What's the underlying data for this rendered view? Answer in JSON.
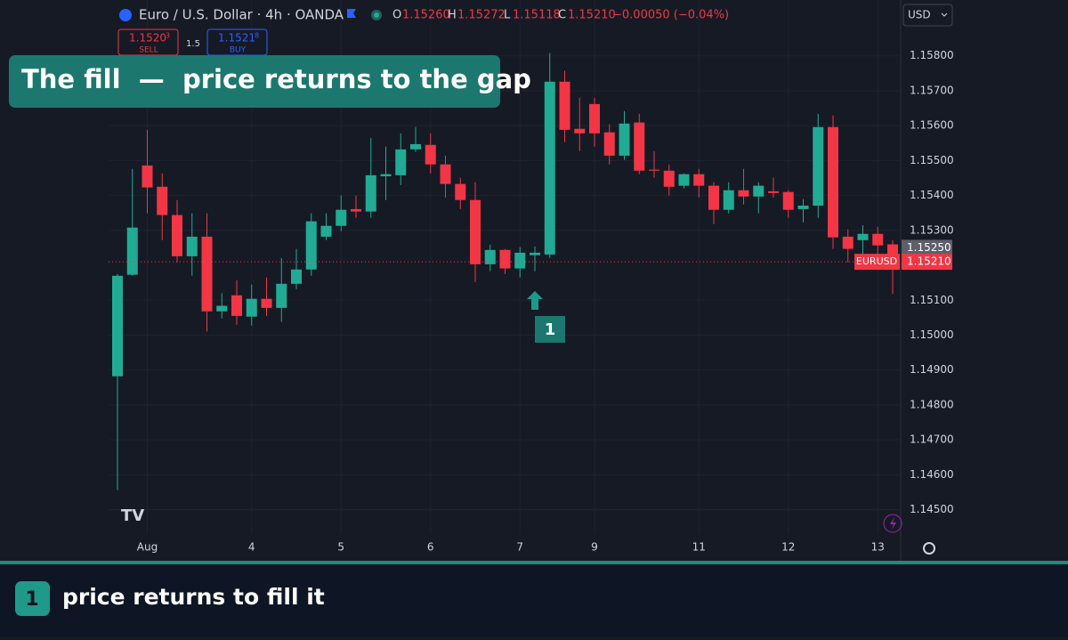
{
  "header": {
    "symbol": "Euro / U.S. Dollar · 4h · OANDA",
    "o_label": "O",
    "o": "1.15260",
    "h_label": "H",
    "h": "1.15272",
    "l_label": "L",
    "l": "1.15118",
    "c_label": "C",
    "c": "1.15210",
    "change": "−0.00050 (−0.04%)",
    "currency": "USD",
    "sell_price": "1.1520",
    "sell_sup": "3",
    "sell": "SELL",
    "spread": "1.5",
    "buy_price": "1.1521",
    "buy_sup": "8",
    "buy": "BUY"
  },
  "overlay": {
    "title": "The fill  —  price returns to the gap"
  },
  "chart_data": {
    "type": "candlestick",
    "up_color": "#22ab94",
    "down_color": "#f23645",
    "annotation": "1",
    "open": [
      1.14882,
      1.15173,
      1.15486,
      1.15425,
      1.15344,
      1.15226,
      1.15282,
      1.15068,
      1.15114,
      1.15053,
      1.15104,
      1.15078,
      1.15147,
      1.15188,
      1.15282,
      1.15313,
      1.15361,
      1.15354,
      1.15455,
      1.15458,
      1.15532,
      1.15545,
      1.15489,
      1.15433,
      1.15387,
      1.15203,
      1.15244,
      1.15191,
      1.15229,
      1.15231,
      1.15726,
      1.15591,
      1.15662,
      1.15581,
      1.15514,
      1.15609,
      1.15474,
      1.15471,
      1.15428,
      1.15461,
      1.15428,
      1.15359,
      1.15415,
      1.15397,
      1.15412,
      1.1541,
      1.15361,
      1.15371,
      1.15596,
      1.15282,
      1.15272,
      1.1529,
      1.1526
    ],
    "high": [
      1.15175,
      1.15476,
      1.15588,
      1.15463,
      1.15387,
      1.15349,
      1.15349,
      1.1512,
      1.15157,
      1.15145,
      1.15165,
      1.15221,
      1.15247,
      1.15349,
      1.15349,
      1.154,
      1.154,
      1.15565,
      1.1554,
      1.15578,
      1.15596,
      1.15578,
      1.15514,
      1.15451,
      1.15438,
      1.15259,
      1.15247,
      1.15252,
      1.15254,
      1.15808,
      1.15757,
      1.1568,
      1.1568,
      1.15604,
      1.15642,
      1.15634,
      1.15527,
      1.15489,
      1.15463,
      1.15476,
      1.15438,
      1.15438,
      1.15476,
      1.15438,
      1.15451,
      1.15415,
      1.15389,
      1.15634,
      1.15629,
      1.15303,
      1.15315,
      1.1531,
      1.15272
    ],
    "low": [
      1.14556,
      1.1517,
      1.15349,
      1.15272,
      1.15208,
      1.1517,
      1.1501,
      1.15048,
      1.1503,
      1.15027,
      1.15055,
      1.15038,
      1.15132,
      1.1517,
      1.15272,
      1.15298,
      1.15336,
      1.15336,
      1.15387,
      1.1543,
      1.15525,
      1.15463,
      1.15394,
      1.15361,
      1.15152,
      1.15183,
      1.15175,
      1.15165,
      1.15183,
      1.15221,
      1.15553,
      1.15527,
      1.1554,
      1.15489,
      1.15502,
      1.15461,
      1.15451,
      1.154,
      1.1542,
      1.15394,
      1.15318,
      1.15349,
      1.15374,
      1.15349,
      1.15394,
      1.15336,
      1.15323,
      1.15336,
      1.15247,
      1.15208,
      1.15221,
      1.15221,
      1.15118
    ],
    "close": [
      1.1517,
      1.15308,
      1.15423,
      1.15344,
      1.15226,
      1.15282,
      1.15068,
      1.15084,
      1.15055,
      1.15104,
      1.15078,
      1.15147,
      1.15188,
      1.15326,
      1.15313,
      1.15359,
      1.15354,
      1.15458,
      1.15461,
      1.15532,
      1.15547,
      1.15489,
      1.15433,
      1.15387,
      1.15203,
      1.15244,
      1.15191,
      1.15236,
      1.15236,
      1.15726,
      1.15588,
      1.15578,
      1.15578,
      1.15514,
      1.15606,
      1.15471,
      1.15471,
      1.15425,
      1.15461,
      1.15428,
      1.15359,
      1.15415,
      1.15397,
      1.15428,
      1.15407,
      1.15359,
      1.15371,
      1.15596,
      1.1528,
      1.15247,
      1.1529,
      1.15257,
      1.1521
    ],
    "ylim": [
      1.1443,
      1.1596
    ],
    "yticks": [
      {
        "value": 1.158,
        "label": "1.15800"
      },
      {
        "value": 1.157,
        "label": "1.15700"
      },
      {
        "value": 1.156,
        "label": "1.15600"
      },
      {
        "value": 1.155,
        "label": "1.15500"
      },
      {
        "value": 1.154,
        "label": "1.15400"
      },
      {
        "value": 1.153,
        "label": "1.15300"
      },
      {
        "value": 1.151,
        "label": "1.15100"
      },
      {
        "value": 1.15,
        "label": "1.15000"
      },
      {
        "value": 1.149,
        "label": "1.14900"
      },
      {
        "value": 1.148,
        "label": "1.14800"
      },
      {
        "value": 1.147,
        "label": "1.14700"
      },
      {
        "value": 1.146,
        "label": "1.14600"
      },
      {
        "value": 1.145,
        "label": "1.14500"
      }
    ],
    "xticks": [
      {
        "value": 2,
        "label": "Aug"
      },
      {
        "value": 9,
        "label": "4"
      },
      {
        "value": 15,
        "label": "5"
      },
      {
        "value": 21,
        "label": "6"
      },
      {
        "value": 27,
        "label": "7"
      },
      {
        "value": 32,
        "label": "9"
      },
      {
        "value": 39,
        "label": "11"
      },
      {
        "value": 45,
        "label": "12"
      },
      {
        "value": 51,
        "label": "13"
      }
    ],
    "prev_price": {
      "value": 1.1525,
      "label": "1.15250"
    },
    "last_price": {
      "value": 1.1521,
      "label": "1.15210"
    },
    "symbol_label": "EURUSD",
    "grid": true
  },
  "footer": {
    "badge": "1",
    "text": "price returns to fill it"
  }
}
